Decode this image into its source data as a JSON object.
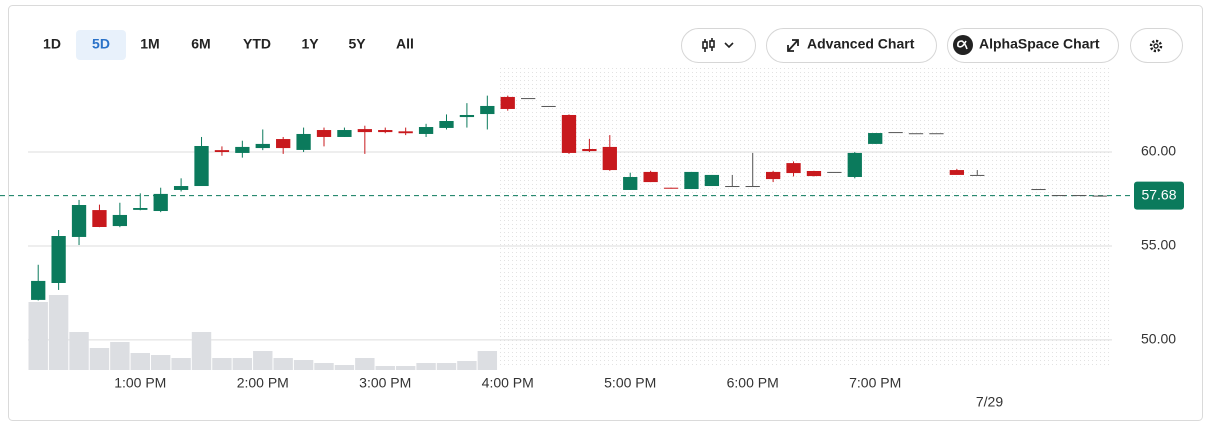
{
  "toolbar": {
    "ranges": [
      "1D",
      "5D",
      "1M",
      "6M",
      "YTD",
      "1Y",
      "5Y",
      "All"
    ],
    "selected_index": 1,
    "buttons": [
      "Advanced Chart",
      "AlphaSpace Chart"
    ]
  },
  "chart_data": {
    "type": "candlestick",
    "categories": [
      null,
      null,
      null,
      null,
      null,
      null,
      null,
      null,
      null,
      null,
      null,
      null,
      null,
      null,
      null,
      null,
      null,
      null,
      null,
      null,
      null,
      null,
      null,
      null,
      null,
      null,
      null,
      null,
      null,
      null,
      null,
      null,
      null,
      null,
      null,
      null,
      null,
      null,
      null,
      null,
      null,
      null,
      null,
      null,
      null,
      null,
      null,
      null,
      null,
      null,
      null,
      null,
      null
    ],
    "open": [
      52.13,
      53.03,
      55.48,
      56.91,
      56.06,
      56.92,
      56.86,
      57.98,
      58.19,
      60.1,
      59.95,
      60.21,
      60.69,
      60.11,
      61.17,
      60.8,
      61.22,
      61.17,
      61.1,
      60.96,
      61.28,
      61.86,
      62.02,
      62.93,
      62.87,
      62.45,
      61.97,
      60.16,
      60.27,
      57.98,
      58.94,
      58.1,
      58.03,
      58.19,
      58.19,
      58.19,
      58.94,
      59.41,
      58.99,
      58.94,
      58.67,
      60.43,
      61.06,
      61.0,
      61.0,
      59.04,
      58.78,
      null,
      null,
      58.03,
      57.71,
      57.71,
      57.68
    ],
    "close": [
      53.14,
      55.53,
      57.18,
      56.01,
      56.65,
      57.02,
      57.77,
      58.19,
      60.32,
      60.0,
      60.27,
      60.43,
      60.21,
      60.96,
      60.8,
      61.17,
      61.06,
      61.06,
      61.0,
      61.33,
      61.65,
      61.97,
      62.45,
      62.29,
      62.87,
      62.45,
      59.95,
      60.05,
      59.04,
      58.67,
      58.4,
      58.05,
      58.94,
      58.78,
      58.19,
      58.19,
      58.56,
      58.88,
      58.72,
      58.94,
      59.95,
      61.01,
      61.06,
      61.0,
      61.0,
      58.78,
      58.78,
      null,
      null,
      58.03,
      57.71,
      57.71,
      57.68
    ],
    "high": [
      54.0,
      55.85,
      57.45,
      57.2,
      57.3,
      57.8,
      58.1,
      58.6,
      60.8,
      60.3,
      60.6,
      61.2,
      60.8,
      61.3,
      61.3,
      61.3,
      61.4,
      61.3,
      61.3,
      61.5,
      62.0,
      62.6,
      63.0,
      63.0,
      62.87,
      62.45,
      62.0,
      60.7,
      60.9,
      58.9,
      59.0,
      58.1,
      58.94,
      58.78,
      58.78,
      59.95,
      59.0,
      59.5,
      59.0,
      58.94,
      60.0,
      61.01,
      61.06,
      61.0,
      61.0,
      59.1,
      59.04,
      null,
      null,
      58.03,
      57.71,
      57.71,
      57.68
    ],
    "low": [
      52.1,
      52.66,
      55.05,
      56.0,
      56.0,
      56.9,
      56.8,
      57.9,
      58.2,
      59.8,
      59.7,
      60.1,
      59.9,
      60.0,
      60.3,
      60.8,
      59.9,
      61.0,
      60.9,
      60.8,
      61.2,
      61.3,
      61.2,
      62.2,
      62.87,
      62.45,
      59.9,
      60.0,
      59.0,
      57.98,
      58.4,
      58.05,
      58.03,
      58.19,
      58.19,
      58.19,
      58.4,
      58.7,
      58.7,
      58.94,
      58.6,
      60.43,
      61.06,
      61.0,
      61.0,
      58.8,
      58.78,
      null,
      null,
      58.03,
      57.71,
      57.71,
      57.68
    ],
    "volume": [
      68,
      75,
      38,
      22,
      28,
      17,
      15,
      12,
      38,
      12,
      12,
      19,
      12,
      10,
      7,
      5,
      12,
      4,
      4,
      7,
      7,
      9,
      19,
      null,
      null,
      null,
      null,
      null,
      null,
      null,
      null,
      null,
      null,
      null,
      null,
      null,
      null,
      null,
      null,
      null,
      null,
      null,
      null,
      null,
      null,
      null,
      null,
      null,
      null,
      null,
      null,
      null,
      null
    ],
    "volume_lim": [
      0,
      305
    ],
    "volume_color": "#dcdee2",
    "up_color": "#0b7a5c",
    "down_color": "#c8191d",
    "flat_color": "#555555",
    "ylim": [
      48.4,
      64.63
    ],
    "yticks": [
      {
        "value": 50,
        "label": "50.00"
      },
      {
        "value": 55,
        "label": "55.00"
      },
      {
        "value": 60,
        "label": "60.00"
      }
    ],
    "grid": true,
    "xlim": [
      -0.5,
      52.6
    ],
    "xticks": [
      {
        "value": 5,
        "label": "1:00 PM"
      },
      {
        "value": 11,
        "label": "2:00 PM"
      },
      {
        "value": 17,
        "label": "3:00 PM"
      },
      {
        "value": 23,
        "label": "4:00 PM"
      },
      {
        "value": 29,
        "label": "5:00 PM"
      },
      {
        "value": 35,
        "label": "6:00 PM"
      },
      {
        "value": 41,
        "label": "7:00 PM"
      }
    ],
    "date_ticks": [
      {
        "value": 46.6,
        "label": "7/29"
      }
    ],
    "last_price": 57.68,
    "last_price_color": "#0b7a5c"
  }
}
